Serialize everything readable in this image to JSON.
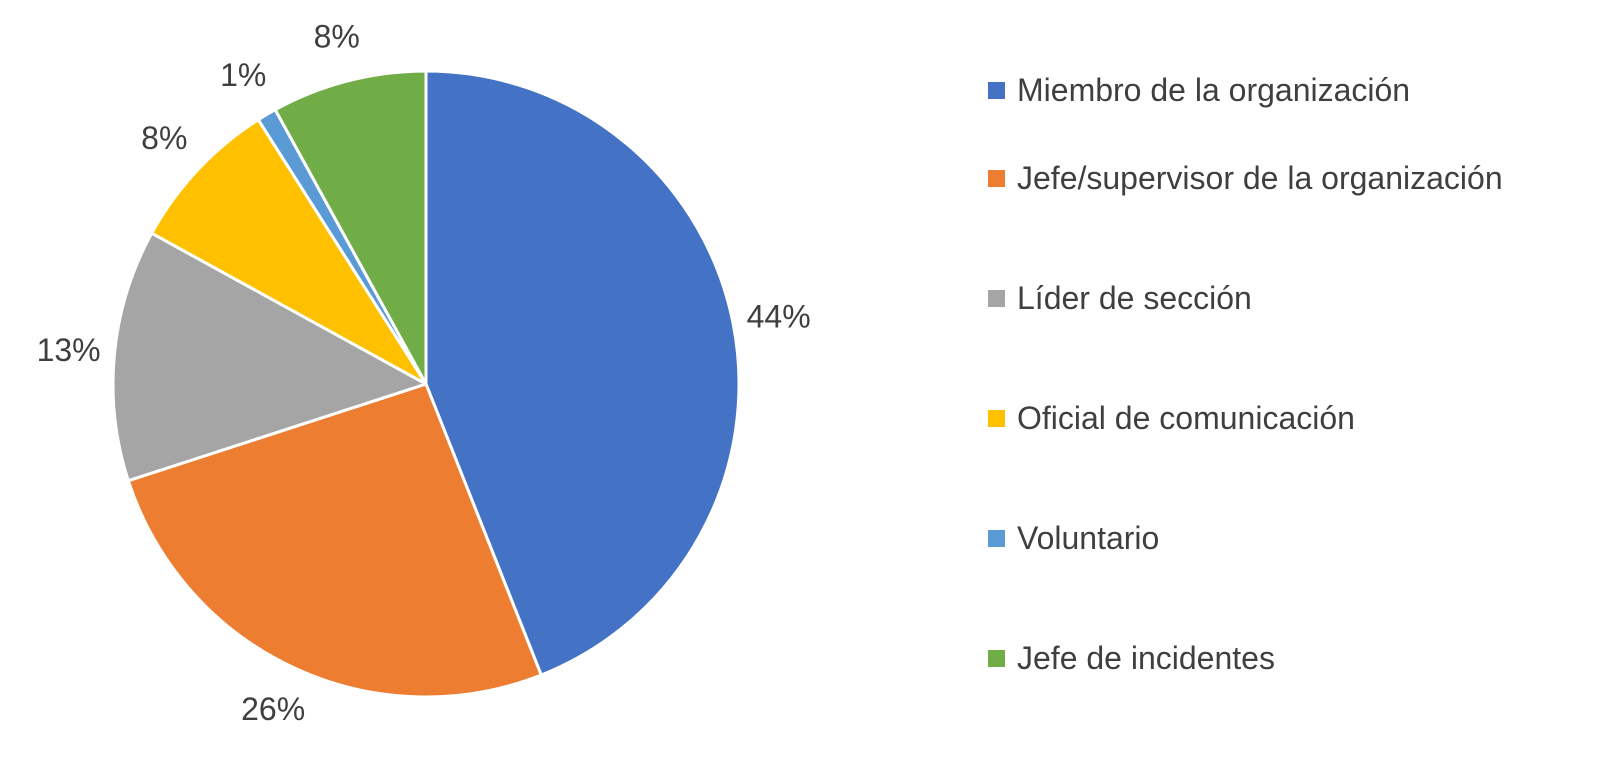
{
  "chart_data": {
    "type": "pie",
    "title": "",
    "slices": [
      {
        "name": "Miembro de la organización",
        "value": 44,
        "label": "44%",
        "color": "#4472C4"
      },
      {
        "name": "Jefe/supervisor de la organización",
        "value": 26,
        "label": "26%",
        "color": "#ED7D31"
      },
      {
        "name": "Líder de sección",
        "value": 13,
        "label": "13%",
        "color": "#A5A5A5"
      },
      {
        "name": "Oficial de comunicación",
        "value": 8,
        "label": "8%",
        "color": "#FFC000"
      },
      {
        "name": "Voluntario",
        "value": 1,
        "label": "1%",
        "color": "#5B9BD5"
      },
      {
        "name": "Jefe de incidentes",
        "value": 8,
        "label": "8%",
        "color": "#70AD47"
      }
    ],
    "legend_position": "right",
    "start_angle": "12 o'clock",
    "direction": "clockwise"
  }
}
